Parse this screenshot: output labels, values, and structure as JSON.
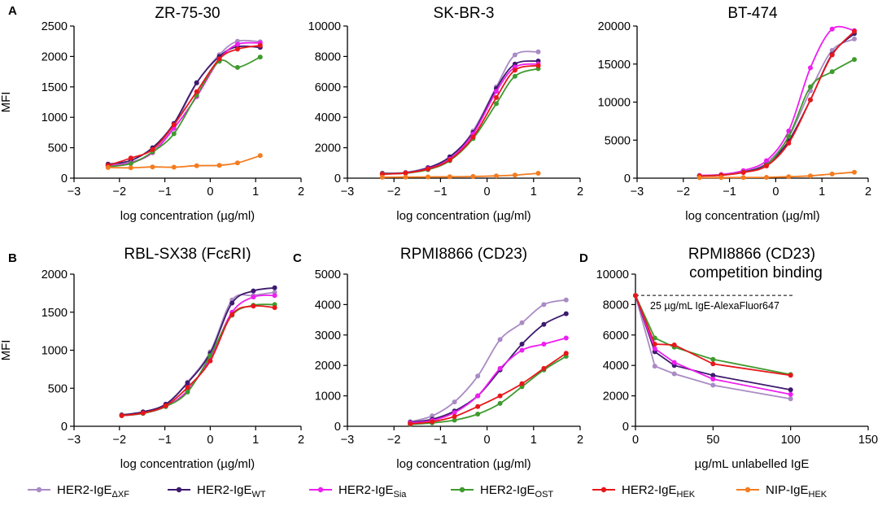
{
  "panel_letters": [
    "A",
    "B",
    "C",
    "D"
  ],
  "legend": [
    {
      "name": "HER2-IgE",
      "sub": "ΔXF",
      "color": "#a98bc4"
    },
    {
      "name": "HER2-IgE",
      "sub": "WT",
      "color": "#3d1a6e"
    },
    {
      "name": "HER2-IgE",
      "sub": "Sia",
      "color": "#ee1ef0"
    },
    {
      "name": "HER2-IgE",
      "sub": "OST",
      "color": "#3f9a2e"
    },
    {
      "name": "HER2-IgE",
      "sub": "HEK",
      "color": "#e8171b"
    },
    {
      "name": "NIP-IgE",
      "sub": "HEK",
      "color": "#f47c20"
    }
  ],
  "chart_data": [
    {
      "id": "zr",
      "type": "line",
      "title": "ZR-75-30",
      "panel_letter": "A",
      "xlabel": "log concentration (µg/ml)",
      "ylabel": "MFI",
      "xlim": [
        -3,
        2
      ],
      "ylim": [
        0,
        2500
      ],
      "xticks": [
        -3,
        -2,
        -1,
        0,
        1,
        2
      ],
      "yticks": [
        0,
        500,
        1000,
        1500,
        2000,
        2500
      ],
      "x": [
        -2.25,
        -1.75,
        -1.27,
        -0.8,
        -0.3,
        0.2,
        0.6,
        1.1
      ],
      "series": [
        {
          "name": "HER2-IgE ΔXF",
          "color": "#a98bc4",
          "values": [
            210,
            260,
            430,
            860,
            1560,
            2030,
            2250,
            2240
          ]
        },
        {
          "name": "HER2-IgE WT",
          "color": "#3d1a6e",
          "values": [
            230,
            290,
            500,
            900,
            1570,
            2000,
            2160,
            2150
          ]
        },
        {
          "name": "HER2-IgE Sia",
          "color": "#ee1ef0",
          "values": [
            200,
            250,
            420,
            820,
            1340,
            1950,
            2200,
            2220
          ]
        },
        {
          "name": "HER2-IgE OST",
          "color": "#3f9a2e",
          "values": [
            190,
            240,
            430,
            730,
            1360,
            1920,
            1820,
            1990
          ]
        },
        {
          "name": "HER2-IgE HEK",
          "color": "#e8171b",
          "values": [
            210,
            330,
            470,
            880,
            1420,
            1960,
            2120,
            2180
          ]
        },
        {
          "name": "NIP-IgE HEK",
          "color": "#f47c20",
          "values": [
            175,
            170,
            185,
            180,
            205,
            210,
            250,
            370
          ]
        }
      ]
    },
    {
      "id": "skbr",
      "type": "line",
      "title": "SK-BR-3",
      "xlabel": "log concentration (µg/ml)",
      "ylabel": "",
      "xlim": [
        -3,
        2
      ],
      "ylim": [
        0,
        10000
      ],
      "xticks": [
        -3,
        -2,
        -1,
        0,
        1,
        2
      ],
      "yticks": [
        0,
        2000,
        4000,
        6000,
        8000,
        10000
      ],
      "x": [
        -2.25,
        -1.75,
        -1.27,
        -0.8,
        -0.3,
        0.2,
        0.6,
        1.1
      ],
      "series": [
        {
          "name": "HER2-IgE ΔXF",
          "color": "#a98bc4",
          "values": [
            300,
            380,
            700,
            1300,
            3100,
            6000,
            8100,
            8300
          ]
        },
        {
          "name": "HER2-IgE WT",
          "color": "#3d1a6e",
          "values": [
            320,
            350,
            680,
            1400,
            3000,
            5900,
            7500,
            7700
          ]
        },
        {
          "name": "HER2-IgE Sia",
          "color": "#ee1ef0",
          "values": [
            290,
            330,
            620,
            1250,
            2900,
            5700,
            7300,
            7500
          ]
        },
        {
          "name": "HER2-IgE OST",
          "color": "#3f9a2e",
          "values": [
            280,
            330,
            560,
            1150,
            2600,
            4900,
            6700,
            7200
          ]
        },
        {
          "name": "HER2-IgE HEK",
          "color": "#e8171b",
          "values": [
            260,
            340,
            600,
            1200,
            2700,
            5300,
            7100,
            7400
          ]
        },
        {
          "name": "NIP-IgE HEK",
          "color": "#f47c20",
          "values": [
            60,
            70,
            80,
            90,
            110,
            150,
            200,
            320
          ]
        }
      ]
    },
    {
      "id": "bt",
      "type": "line",
      "title": "BT-474",
      "xlabel": "log concentration (µg/ml)",
      "ylabel": "",
      "xlim": [
        -3,
        2
      ],
      "ylim": [
        0,
        20000
      ],
      "xticks": [
        -3,
        -2,
        -1,
        0,
        1,
        2
      ],
      "yticks": [
        0,
        5000,
        10000,
        15000,
        20000
      ],
      "x": [
        -1.65,
        -1.18,
        -0.7,
        -0.2,
        0.28,
        0.75,
        1.22,
        1.7
      ],
      "series": [
        {
          "name": "HER2-IgE ΔXF",
          "color": "#a98bc4",
          "values": [
            300,
            400,
            800,
            2000,
            5400,
            11500,
            16800,
            18300
          ]
        },
        {
          "name": "HER2-IgE WT",
          "color": "#3d1a6e",
          "values": [
            320,
            420,
            820,
            1800,
            4900,
            10300,
            16300,
            19000
          ]
        },
        {
          "name": "HER2-IgE Sia",
          "color": "#ee1ef0",
          "values": [
            360,
            480,
            1000,
            2300,
            6200,
            14500,
            19600,
            19400
          ]
        },
        {
          "name": "HER2-IgE OST",
          "color": "#3f9a2e",
          "values": [
            290,
            400,
            780,
            1700,
            5500,
            12000,
            14000,
            15600
          ]
        },
        {
          "name": "HER2-IgE HEK",
          "color": "#e8171b",
          "values": [
            280,
            380,
            750,
            1600,
            4600,
            10300,
            16200,
            19300
          ]
        },
        {
          "name": "NIP-IgE HEK",
          "color": "#f47c20",
          "values": [
            60,
            80,
            90,
            110,
            190,
            300,
            550,
            780
          ]
        }
      ]
    },
    {
      "id": "rbl",
      "type": "line",
      "title": "RBL-SX38 (FcεRI)",
      "panel_letter": "B",
      "xlabel": "log concentration (µg/ml)",
      "ylabel": "MFI",
      "xlim": [
        -3,
        2
      ],
      "ylim": [
        0,
        2000
      ],
      "xticks": [
        -3,
        -2,
        -1,
        0,
        1,
        2
      ],
      "yticks": [
        0,
        500,
        1000,
        1500,
        2000
      ],
      "x": [
        -1.95,
        -1.48,
        -0.98,
        -0.5,
        0.0,
        0.48,
        0.95,
        1.42
      ],
      "series": [
        {
          "name": "HER2-IgE ΔXF",
          "color": "#a98bc4",
          "values": [
            140,
            180,
            290,
            580,
            980,
            1660,
            1720,
            1760
          ]
        },
        {
          "name": "HER2-IgE WT",
          "color": "#3d1a6e",
          "values": [
            150,
            190,
            290,
            570,
            960,
            1620,
            1780,
            1820
          ]
        },
        {
          "name": "HER2-IgE Sia",
          "color": "#ee1ef0",
          "values": [
            140,
            170,
            260,
            470,
            900,
            1500,
            1700,
            1720
          ]
        },
        {
          "name": "HER2-IgE OST",
          "color": "#3f9a2e",
          "values": [
            140,
            170,
            260,
            450,
            930,
            1460,
            1590,
            1600
          ]
        },
        {
          "name": "HER2-IgE HEK",
          "color": "#e8171b",
          "values": [
            140,
            175,
            270,
            510,
            860,
            1470,
            1580,
            1560
          ]
        }
      ]
    },
    {
      "id": "rpmi",
      "type": "line",
      "title": "RPMI8866 (CD23)",
      "panel_letter": "C",
      "xlabel": "log concentration (µg/ml)",
      "ylabel": "",
      "xlim": [
        -3,
        2
      ],
      "ylim": [
        0,
        5000
      ],
      "xticks": [
        -3,
        -2,
        -1,
        0,
        1,
        2
      ],
      "yticks": [
        0,
        1000,
        2000,
        3000,
        4000,
        5000
      ],
      "x": [
        -1.65,
        -1.18,
        -0.7,
        -0.2,
        0.28,
        0.75,
        1.22,
        1.7
      ],
      "series": [
        {
          "name": "HER2-IgE ΔXF",
          "color": "#a98bc4",
          "values": [
            150,
            340,
            800,
            1650,
            2850,
            3400,
            4000,
            4150
          ]
        },
        {
          "name": "HER2-IgE WT",
          "color": "#3d1a6e",
          "values": [
            130,
            230,
            500,
            1000,
            1850,
            2700,
            3350,
            3700
          ]
        },
        {
          "name": "HER2-IgE Sia",
          "color": "#ee1ef0",
          "values": [
            110,
            190,
            450,
            1000,
            1900,
            2500,
            2700,
            2900
          ]
        },
        {
          "name": "HER2-IgE OST",
          "color": "#3f9a2e",
          "values": [
            60,
            110,
            200,
            400,
            750,
            1300,
            1850,
            2300
          ]
        },
        {
          "name": "HER2-IgE HEK",
          "color": "#e8171b",
          "values": [
            80,
            150,
            320,
            650,
            1000,
            1400,
            1900,
            2400
          ]
        }
      ]
    },
    {
      "id": "comp",
      "type": "line",
      "title": "RPMI8866 (CD23)",
      "subtitle": "competition binding",
      "panel_letter": "D",
      "xlabel": "µg/mL unlabelled IgE",
      "ylabel": "",
      "xlim": [
        0,
        150
      ],
      "ylim": [
        0,
        10000
      ],
      "xticks": [
        0,
        50,
        100,
        150
      ],
      "yticks": [
        0,
        2000,
        4000,
        6000,
        8000,
        10000
      ],
      "x": [
        0,
        12.5,
        25,
        50,
        100
      ],
      "reference_line": {
        "y": 8600,
        "label": "25 µg/mL IgE-AlexaFluor647"
      },
      "series": [
        {
          "name": "HER2-IgE ΔXF",
          "color": "#a98bc4",
          "values": [
            8600,
            3950,
            3450,
            2700,
            1800
          ]
        },
        {
          "name": "HER2-IgE WT",
          "color": "#3d1a6e",
          "values": [
            8600,
            4900,
            4000,
            3350,
            2400
          ]
        },
        {
          "name": "HER2-IgE Sia",
          "color": "#ee1ef0",
          "values": [
            8600,
            5100,
            4200,
            3100,
            2100
          ]
        },
        {
          "name": "HER2-IgE OST",
          "color": "#3f9a2e",
          "values": [
            8600,
            5800,
            5200,
            4400,
            3400
          ]
        },
        {
          "name": "HER2-IgE HEK",
          "color": "#e8171b",
          "values": [
            8600,
            5400,
            5350,
            4100,
            3350
          ]
        }
      ]
    }
  ]
}
